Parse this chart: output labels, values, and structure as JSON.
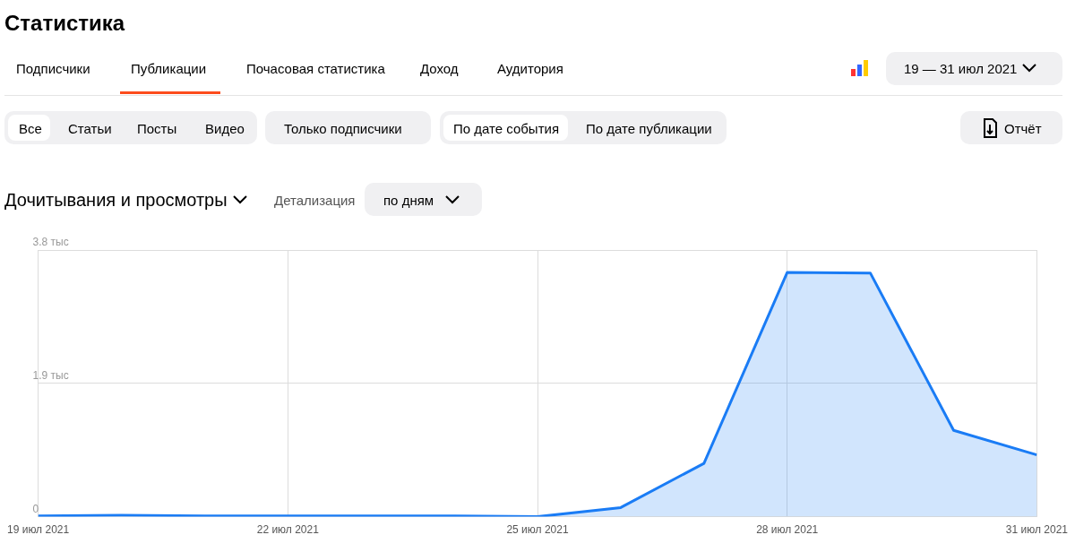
{
  "chart_data": [
    {
      "type": "other",
      "title": "Статистика",
      "annotations": [
        "Подписчики",
        "Публикации",
        "Почасовая статистика",
        "Доход",
        "Аудитория",
        "19 — 31 июл 2021",
        "Все",
        "Статьи",
        "Посты",
        "Видео",
        "Только подписчики",
        "По дате события",
        "По дате публикации",
        "Отчёт",
        "Детализация",
        "по дням"
      ]
    },
    {
      "type": "area",
      "title": "Дочитывания и просмотры",
      "x": [
        "2021-07-19",
        "2021-07-20",
        "2021-07-21",
        "2021-07-22",
        "2021-07-23",
        "2021-07-24",
        "2021-07-25",
        "2021-07-26",
        "2021-07-27",
        "2021-07-28",
        "2021-07-29",
        "2021-07-30",
        "2021-07-31"
      ],
      "series": [
        {
          "color": "#1a7cf5",
          "values": [
            0.01,
            0.02,
            0.01,
            0.01,
            0.01,
            0.01,
            0.0,
            0.13,
            0.76,
            3.48,
            3.47,
            1.23,
            0.88
          ]
        }
      ],
      "xlim": [
        "2021-07-19",
        "2021-07-31"
      ],
      "xticks": [
        {
          "value": "2021-07-19",
          "label": "19 июл 2021"
        },
        {
          "value": "2021-07-22",
          "label": "22 июл 2021"
        },
        {
          "value": "2021-07-25",
          "label": "25 июл 2021"
        },
        {
          "value": "2021-07-28",
          "label": "28 июл 2021"
        },
        {
          "value": "2021-07-31",
          "label": "31 июл 2021"
        }
      ],
      "ylim": [
        0,
        3.8
      ],
      "yticks": [
        0,
        {
          "value": 1.9,
          "label": "1.9 тыс"
        },
        {
          "value": 3.8,
          "label": "3.8 тыс"
        }
      ],
      "grid": true
    }
  ]
}
